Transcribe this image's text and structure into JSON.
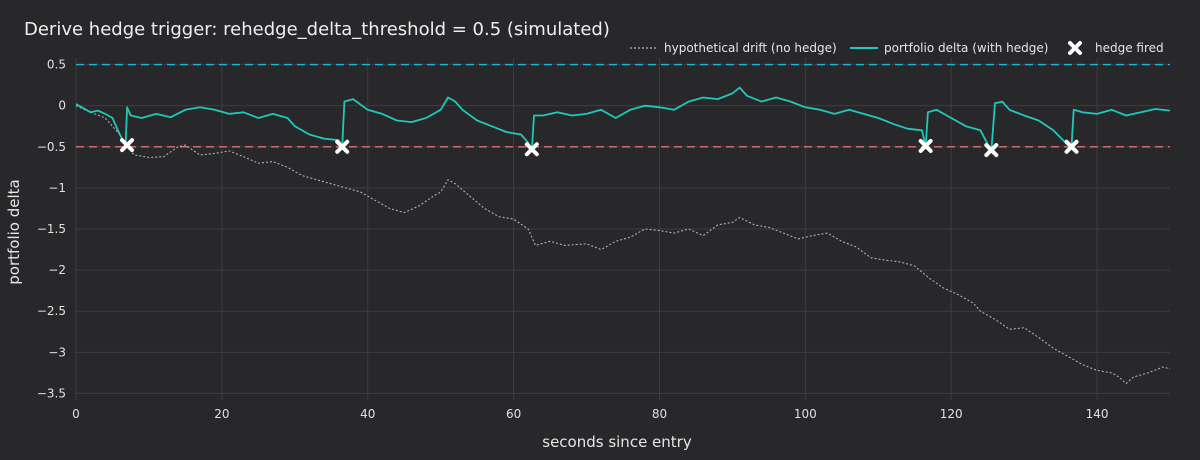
{
  "chart_data": {
    "type": "line",
    "title": "Derive hedge trigger: rehedge_delta_threshold = 0.5 (simulated)",
    "xlabel": "seconds since entry",
    "ylabel": "portfolio delta",
    "xlim": [
      0,
      150
    ],
    "ylim": [
      -3.58,
      0.58
    ],
    "x_ticks": [
      0,
      20,
      40,
      60,
      80,
      100,
      120,
      140
    ],
    "x_tick_labels": [
      "0",
      "20",
      "40",
      "60",
      "80",
      "100",
      "120",
      "140"
    ],
    "y_ticks": [
      0.5,
      0,
      -0.5,
      -1,
      -1.5,
      -2,
      -2.5,
      -3,
      -3.5
    ],
    "y_tick_labels": [
      "0.5",
      "0",
      "−0.5",
      "−1",
      "−1.5",
      "−2",
      "−2.5",
      "−3",
      "−3.5"
    ],
    "grid": true,
    "legend_position": "top-right",
    "threshold_lines": [
      {
        "y": 0.5,
        "color": "#1fb5d6"
      },
      {
        "y": -0.5,
        "color": "#e07070"
      }
    ],
    "series": [
      {
        "name": "hypothetical drift (no hedge)",
        "style": "dotted",
        "color": "#b0b0b0",
        "points": [
          [
            0,
            0
          ],
          [
            2,
            -0.08
          ],
          [
            4,
            -0.15
          ],
          [
            6,
            -0.35
          ],
          [
            7,
            -0.5
          ],
          [
            8,
            -0.6
          ],
          [
            10,
            -0.63
          ],
          [
            12,
            -0.62
          ],
          [
            14,
            -0.5
          ],
          [
            15,
            -0.48
          ],
          [
            17,
            -0.6
          ],
          [
            19,
            -0.58
          ],
          [
            21,
            -0.55
          ],
          [
            23,
            -0.62
          ],
          [
            25,
            -0.7
          ],
          [
            27,
            -0.68
          ],
          [
            29,
            -0.75
          ],
          [
            31,
            -0.85
          ],
          [
            33,
            -0.9
          ],
          [
            35,
            -0.95
          ],
          [
            37,
            -1.0
          ],
          [
            39,
            -1.05
          ],
          [
            41,
            -1.15
          ],
          [
            43,
            -1.25
          ],
          [
            45,
            -1.3
          ],
          [
            47,
            -1.22
          ],
          [
            49,
            -1.1
          ],
          [
            50,
            -1.05
          ],
          [
            51,
            -0.9
          ],
          [
            52,
            -0.95
          ],
          [
            54,
            -1.1
          ],
          [
            56,
            -1.25
          ],
          [
            58,
            -1.35
          ],
          [
            60,
            -1.38
          ],
          [
            62,
            -1.5
          ],
          [
            63,
            -1.7
          ],
          [
            65,
            -1.65
          ],
          [
            67,
            -1.7
          ],
          [
            70,
            -1.68
          ],
          [
            72,
            -1.75
          ],
          [
            74,
            -1.65
          ],
          [
            76,
            -1.6
          ],
          [
            78,
            -1.5
          ],
          [
            80,
            -1.52
          ],
          [
            82,
            -1.55
          ],
          [
            84,
            -1.5
          ],
          [
            86,
            -1.58
          ],
          [
            88,
            -1.45
          ],
          [
            90,
            -1.42
          ],
          [
            91,
            -1.36
          ],
          [
            93,
            -1.45
          ],
          [
            95,
            -1.48
          ],
          [
            97,
            -1.55
          ],
          [
            99,
            -1.62
          ],
          [
            101,
            -1.58
          ],
          [
            103,
            -1.55
          ],
          [
            105,
            -1.65
          ],
          [
            107,
            -1.72
          ],
          [
            109,
            -1.85
          ],
          [
            111,
            -1.88
          ],
          [
            113,
            -1.9
          ],
          [
            115,
            -1.95
          ],
          [
            117,
            -2.1
          ],
          [
            119,
            -2.22
          ],
          [
            121,
            -2.3
          ],
          [
            123,
            -2.4
          ],
          [
            124,
            -2.5
          ],
          [
            126,
            -2.6
          ],
          [
            128,
            -2.72
          ],
          [
            130,
            -2.7
          ],
          [
            132,
            -2.82
          ],
          [
            134,
            -2.95
          ],
          [
            136,
            -3.05
          ],
          [
            138,
            -3.15
          ],
          [
            140,
            -3.22
          ],
          [
            142,
            -3.25
          ],
          [
            143,
            -3.3
          ],
          [
            144,
            -3.38
          ],
          [
            145,
            -3.3
          ],
          [
            147,
            -3.25
          ],
          [
            149,
            -3.18
          ],
          [
            150,
            -3.2
          ]
        ]
      },
      {
        "name": "portfolio delta (with hedge)",
        "style": "solid",
        "color": "#1fc8b8",
        "points": [
          [
            0,
            0.02
          ],
          [
            1,
            -0.03
          ],
          [
            2,
            -0.08
          ],
          [
            3,
            -0.06
          ],
          [
            4,
            -0.1
          ],
          [
            5,
            -0.15
          ],
          [
            6,
            -0.35
          ],
          [
            6.8,
            -0.48
          ],
          [
            7,
            -0.02
          ],
          [
            7.5,
            -0.12
          ],
          [
            9,
            -0.15
          ],
          [
            11,
            -0.1
          ],
          [
            13,
            -0.14
          ],
          [
            15,
            -0.05
          ],
          [
            17,
            -0.02
          ],
          [
            19,
            -0.05
          ],
          [
            21,
            -0.1
          ],
          [
            23,
            -0.08
          ],
          [
            25,
            -0.15
          ],
          [
            27,
            -0.1
          ],
          [
            29,
            -0.15
          ],
          [
            30,
            -0.25
          ],
          [
            32,
            -0.35
          ],
          [
            34,
            -0.4
          ],
          [
            36,
            -0.42
          ],
          [
            36.5,
            -0.5
          ],
          [
            36.8,
            0.05
          ],
          [
            38,
            0.08
          ],
          [
            40,
            -0.05
          ],
          [
            42,
            -0.1
          ],
          [
            44,
            -0.18
          ],
          [
            46,
            -0.2
          ],
          [
            48,
            -0.15
          ],
          [
            50,
            -0.05
          ],
          [
            51,
            0.1
          ],
          [
            52,
            0.05
          ],
          [
            53,
            -0.05
          ],
          [
            55,
            -0.18
          ],
          [
            57,
            -0.25
          ],
          [
            59,
            -0.32
          ],
          [
            61,
            -0.35
          ],
          [
            62,
            -0.45
          ],
          [
            62.5,
            -0.55
          ],
          [
            62.8,
            -0.12
          ],
          [
            64,
            -0.12
          ],
          [
            66,
            -0.08
          ],
          [
            68,
            -0.12
          ],
          [
            70,
            -0.1
          ],
          [
            72,
            -0.05
          ],
          [
            74,
            -0.15
          ],
          [
            76,
            -0.05
          ],
          [
            78,
            0.0
          ],
          [
            80,
            -0.02
          ],
          [
            82,
            -0.05
          ],
          [
            84,
            0.05
          ],
          [
            86,
            0.1
          ],
          [
            88,
            0.08
          ],
          [
            90,
            0.15
          ],
          [
            91,
            0.22
          ],
          [
            92,
            0.12
          ],
          [
            94,
            0.05
          ],
          [
            96,
            0.1
          ],
          [
            98,
            0.05
          ],
          [
            100,
            -0.02
          ],
          [
            102,
            -0.05
          ],
          [
            104,
            -0.1
          ],
          [
            106,
            -0.05
          ],
          [
            108,
            -0.1
          ],
          [
            110,
            -0.15
          ],
          [
            112,
            -0.22
          ],
          [
            114,
            -0.28
          ],
          [
            116,
            -0.3
          ],
          [
            116.5,
            -0.5
          ],
          [
            116.8,
            -0.08
          ],
          [
            118,
            -0.05
          ],
          [
            120,
            -0.15
          ],
          [
            122,
            -0.25
          ],
          [
            124,
            -0.3
          ],
          [
            125.5,
            -0.55
          ],
          [
            126,
            0.03
          ],
          [
            127,
            0.05
          ],
          [
            128,
            -0.05
          ],
          [
            130,
            -0.12
          ],
          [
            132,
            -0.18
          ],
          [
            134,
            -0.3
          ],
          [
            136,
            -0.48
          ],
          [
            136.5,
            -0.5
          ],
          [
            136.8,
            -0.05
          ],
          [
            138,
            -0.08
          ],
          [
            140,
            -0.1
          ],
          [
            142,
            -0.05
          ],
          [
            144,
            -0.12
          ],
          [
            146,
            -0.08
          ],
          [
            148,
            -0.04
          ],
          [
            150,
            -0.06
          ]
        ]
      },
      {
        "name": "hedge fired",
        "style": "markers",
        "color": "#ffffff",
        "points": [
          [
            7,
            -0.48
          ],
          [
            36.5,
            -0.5
          ],
          [
            62.5,
            -0.53
          ],
          [
            116.5,
            -0.49
          ],
          [
            125.5,
            -0.54
          ],
          [
            136.5,
            -0.5
          ]
        ]
      }
    ]
  }
}
